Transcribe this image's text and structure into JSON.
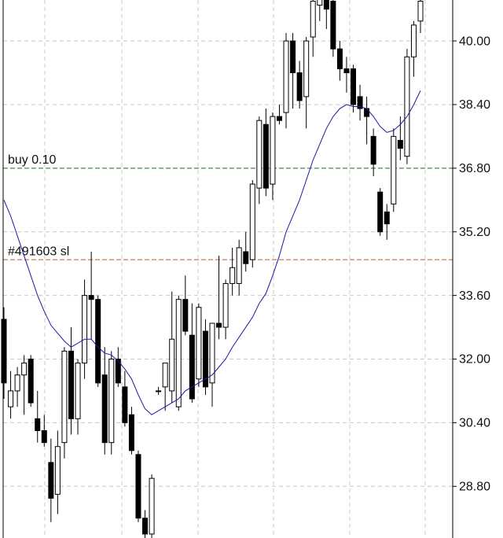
{
  "chart_data": {
    "type": "candlestick",
    "ylim": [
      27.5,
      41.03
    ],
    "yticks": [
      {
        "value": 40,
        "label": "40.00"
      },
      {
        "value": 38.4,
        "label": "38.40"
      },
      {
        "value": 36.8,
        "label": "36.80"
      },
      {
        "value": 35.2,
        "label": "35.20"
      },
      {
        "value": 33.6,
        "label": "33.60"
      },
      {
        "value": 32,
        "label": "32.00"
      },
      {
        "value": 30.4,
        "label": "30.40"
      },
      {
        "value": 28.8,
        "label": "28.80"
      }
    ],
    "grid": true,
    "up_color": "#ffffff",
    "down_color": "#000000",
    "open": [
      33.0,
      30.8,
      31.2,
      31.6,
      32.0,
      30.5,
      30.2,
      29.4,
      28.6,
      29.9,
      32.2,
      30.5,
      31.9,
      33.6,
      33.5,
      31.6,
      29.9,
      32.0,
      31.3,
      30.6,
      29.6,
      28.0,
      27.6,
      31.2,
      31.3,
      31.2,
      30.8,
      33.5,
      32.6,
      31.5,
      32.7,
      31.4,
      32.9,
      32.8,
      33.9,
      33.9,
      34.7,
      34.5,
      36.3,
      37.9,
      36.4,
      38.1,
      38.2,
      40.0,
      39.2,
      38.6,
      40.1,
      40.9,
      41.1,
      41.0,
      39.8,
      39.3,
      39.3,
      38.6,
      38.3,
      37.6,
      36.2,
      35.7,
      35.9,
      37.5,
      37.1,
      39.6,
      40.5
    ],
    "high": [
      33.3,
      31.7,
      31.8,
      32.1,
      32.1,
      31.2,
      30.6,
      30.0,
      30.2,
      32.3,
      32.8,
      32.0,
      34.0,
      34.7,
      33.6,
      32.3,
      32.2,
      32.3,
      31.7,
      30.8,
      29.7,
      28.2,
      29.1,
      31.3,
      31.9,
      33.7,
      33.6,
      34.1,
      33.4,
      33.4,
      33.0,
      32.9,
      34.6,
      34.0,
      34.8,
      35.0,
      35.2,
      36.5,
      38.1,
      38.3,
      38.2,
      38.4,
      40.2,
      40.2,
      39.5,
      40.1,
      41.1,
      41.2,
      41.2,
      41.3,
      40.0,
      39.6,
      39.4,
      38.9,
      38.6,
      37.8,
      36.3,
      35.9,
      37.8,
      38.1,
      39.8,
      40.5,
      41.2
    ],
    "low": [
      31.0,
      30.5,
      30.8,
      30.6,
      30.8,
      29.9,
      29.8,
      27.9,
      28.1,
      29.5,
      30.1,
      30.1,
      31.5,
      32.5,
      31.3,
      29.6,
      29.6,
      31.3,
      30.3,
      29.6,
      27.9,
      27.5,
      27.5,
      31.1,
      30.7,
      30.9,
      30.7,
      32.6,
      30.9,
      31.3,
      31.1,
      30.8,
      32.5,
      32.5,
      33.6,
      33.6,
      34.2,
      34.3,
      35.9,
      36.1,
      36.0,
      37.9,
      37.8,
      38.3,
      38.3,
      37.8,
      39.6,
      40.5,
      40.3,
      39.6,
      39.0,
      38.7,
      38.2,
      38.0,
      37.4,
      36.6,
      35.1,
      35.0,
      35.7,
      37.0,
      36.9,
      39.1,
      40.2
    ],
    "close": [
      31.4,
      31.2,
      31.6,
      31.9,
      30.9,
      30.2,
      29.9,
      28.5,
      29.8,
      32.2,
      30.5,
      31.9,
      33.6,
      33.5,
      31.4,
      29.9,
      32.0,
      31.4,
      30.4,
      29.7,
      28.0,
      27.6,
      29.0,
      31.2,
      31.9,
      32.5,
      33.5,
      32.7,
      31.0,
      33.3,
      31.3,
      32.9,
      32.8,
      33.9,
      34.3,
      34.8,
      34.4,
      36.4,
      38.0,
      36.3,
      38.1,
      38.0,
      40.0,
      39.2,
      38.5,
      40.0,
      41.0,
      41.1,
      40.8,
      39.8,
      39.3,
      39.2,
      38.4,
      38.3,
      38.1,
      36.9,
      35.2,
      35.4,
      37.6,
      37.3,
      39.6,
      40.4,
      41.0
    ],
    "ma": {
      "color": "#1a1aa6",
      "values": [
        36.0,
        35.6,
        35.1,
        34.6,
        34.1,
        33.6,
        33.2,
        32.85,
        32.65,
        32.45,
        32.3,
        32.4,
        32.5,
        32.5,
        32.3,
        32.15,
        32.1,
        31.95,
        31.75,
        31.5,
        31.1,
        30.75,
        30.6,
        30.7,
        30.8,
        30.9,
        31.0,
        31.2,
        31.3,
        31.4,
        31.5,
        31.6,
        31.8,
        32.0,
        32.3,
        32.55,
        32.8,
        33.05,
        33.4,
        33.65,
        34.1,
        34.6,
        35.2,
        35.6,
        36.0,
        36.5,
        37.0,
        37.4,
        37.8,
        38.1,
        38.3,
        38.4,
        38.35,
        38.35,
        38.3,
        38.1,
        37.85,
        37.7,
        37.75,
        37.9,
        38.1,
        38.4,
        38.75
      ]
    },
    "levels": [
      {
        "label": "buy 0.10",
        "value": 36.8,
        "color": "#1e7b1e"
      },
      {
        "label": "#491603 sl",
        "value": 34.5,
        "color": "#b5602a"
      }
    ]
  }
}
